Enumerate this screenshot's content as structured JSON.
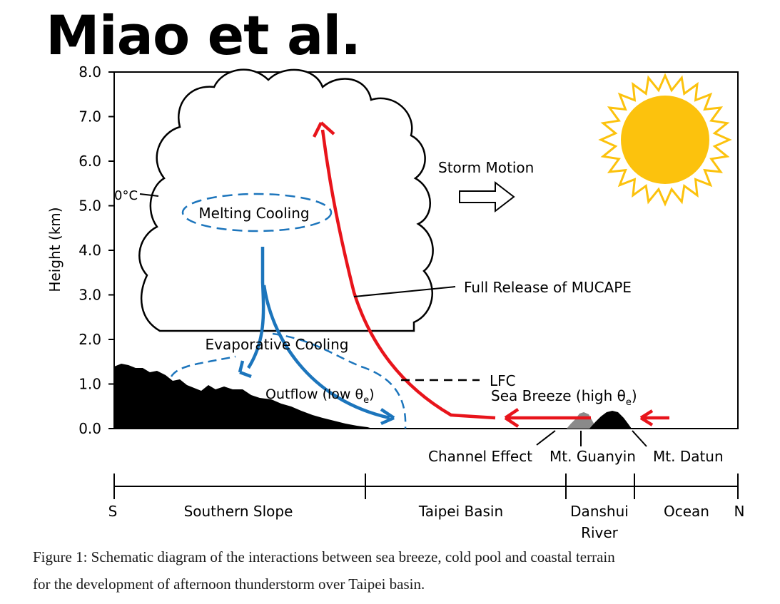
{
  "slide_title": "Miao et al.",
  "axis": {
    "ylabel": "Height (km)",
    "ticks": [
      "0.0",
      "1.0",
      "2.0",
      "3.0",
      "4.0",
      "5.0",
      "6.0",
      "7.0",
      "8.0"
    ]
  },
  "labels": {
    "freezing_level": "0°C",
    "melting_cooling": "Melting Cooling",
    "evaporative_cooling": "Evaporative Cooling",
    "outflow": "Outflow (low θe)",
    "outflow_main": "Outflow (low θ",
    "outflow_sub": "e",
    "outflow_close": ")",
    "storm_motion": "Storm Motion",
    "full_release": "Full Release of MUCAPE",
    "lfc": "LFC",
    "sea_breeze": "Sea Breeze (high θe)",
    "sea_breeze_main": "Sea Breeze (high θ",
    "sea_breeze_sub": "e",
    "sea_breeze_close": ")",
    "channel_effect": "Channel Effect",
    "mt_guanyin": "Mt. Guanyin",
    "mt_datun": "Mt. Datun"
  },
  "regions": {
    "south": "S",
    "southern_slope": "Southern Slope",
    "taipei_basin": "Taipei Basin",
    "danshui_river_line1": "Danshui",
    "danshui_river_line2": "River",
    "ocean": "Ocean",
    "north": "N"
  },
  "caption": {
    "line1": "Figure 1: Schematic diagram of the interactions between sea breeze, cold pool and coastal terrain",
    "line2": "for the development of afternoon thunderstorm over Taipei basin."
  },
  "colors": {
    "updraft": "#e8141b",
    "downdraft": "#1c75bc",
    "sun": "#fcc20d",
    "terrain": "#000000",
    "guanyin": "#8a8a8a"
  }
}
